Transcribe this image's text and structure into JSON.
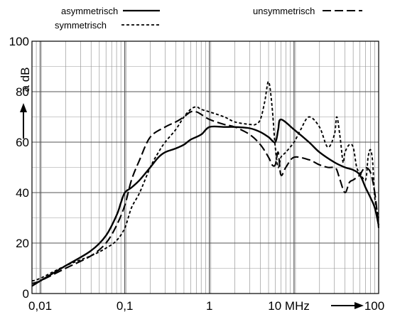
{
  "chart_data": {
    "type": "line",
    "x_scale": "log",
    "xlim": [
      0.008,
      100
    ],
    "ylim": [
      0,
      100
    ],
    "x_ticks": [
      {
        "value": 0.01,
        "label": "0,01"
      },
      {
        "value": 0.1,
        "label": "0,1"
      },
      {
        "value": 1,
        "label": "1"
      },
      {
        "value": 10,
        "label": "10 MHz"
      },
      {
        "value": 100,
        "label": "100"
      }
    ],
    "y_ticks": [
      0,
      20,
      40,
      60,
      80,
      100
    ],
    "xlabel": "MHz",
    "ylabel": "a dB",
    "grid": true,
    "legend_position": "top",
    "series": [
      {
        "name": "asymmetrisch",
        "dash": "solid",
        "x": [
          0.008,
          0.01,
          0.02,
          0.04,
          0.06,
          0.08,
          0.09,
          0.1,
          0.12,
          0.15,
          0.2,
          0.25,
          0.3,
          0.4,
          0.5,
          0.6,
          0.8,
          1.0,
          1.5,
          2,
          3,
          4,
          5,
          6,
          6.5,
          7,
          10,
          15,
          20,
          30,
          40,
          50,
          60,
          70,
          80,
          90,
          100
        ],
        "y": [
          3,
          5,
          11,
          17,
          23,
          31,
          36,
          40,
          42,
          45,
          50,
          54,
          56,
          57.5,
          59,
          61,
          63,
          66,
          66,
          66,
          65.5,
          64,
          62,
          60,
          65,
          69,
          65,
          60,
          56,
          52,
          50,
          49,
          47,
          42,
          38,
          34,
          27
        ]
      },
      {
        "name": "symmetrisch",
        "dash": "short",
        "x": [
          0.008,
          0.01,
          0.02,
          0.04,
          0.06,
          0.08,
          0.1,
          0.12,
          0.15,
          0.2,
          0.25,
          0.3,
          0.4,
          0.5,
          0.6,
          0.7,
          0.8,
          1.0,
          1.5,
          2,
          3,
          3.5,
          4,
          4.5,
          5,
          5.5,
          6,
          6.5,
          7,
          8,
          10,
          12,
          15,
          20,
          25,
          30,
          32,
          35,
          38,
          40,
          45,
          50,
          55,
          60,
          70,
          75,
          80,
          85,
          90,
          100
        ],
        "y": [
          5,
          6,
          11,
          15,
          18,
          21,
          26,
          34,
          40,
          50,
          56,
          60,
          65,
          70,
          73,
          74,
          73,
          72,
          70,
          68,
          67,
          67,
          69,
          76,
          84,
          74,
          58,
          50,
          54,
          56,
          60,
          65,
          70,
          66,
          58,
          63,
          70,
          62,
          52,
          56,
          59,
          58,
          50,
          48,
          45,
          54,
          57,
          52,
          38,
          30
        ]
      },
      {
        "name": "unsymmetrisch",
        "dash": "long",
        "x": [
          0.008,
          0.01,
          0.02,
          0.04,
          0.06,
          0.08,
          0.1,
          0.12,
          0.15,
          0.2,
          0.3,
          0.4,
          0.5,
          0.6,
          0.7,
          0.8,
          1.0,
          1.5,
          2,
          3,
          4,
          5,
          5.5,
          6,
          6.5,
          7,
          8,
          10,
          15,
          20,
          25,
          30,
          32,
          35,
          40,
          45,
          50,
          55,
          60,
          65,
          70,
          80,
          90,
          100
        ],
        "y": [
          4,
          5,
          10,
          15,
          20,
          27,
          35,
          45,
          53,
          62,
          66,
          68,
          70,
          72,
          72,
          71,
          69,
          67,
          66,
          63,
          59,
          54,
          51,
          51,
          56,
          47,
          50,
          54,
          53,
          51,
          50,
          50,
          49,
          45,
          40,
          44,
          45,
          46,
          47,
          49,
          50,
          48,
          40,
          26
        ]
      }
    ],
    "annotations": [
      "→ (x-axis arrow after 10 MHz)",
      "↑ (y-axis arrow below a dB)"
    ]
  },
  "labels": {
    "legend_asym": "asymmetrisch",
    "legend_sym": "symmetrisch",
    "legend_unsym": "unsymmetrisch",
    "ylabel": "a dB",
    "xunit": "10 MHz"
  }
}
